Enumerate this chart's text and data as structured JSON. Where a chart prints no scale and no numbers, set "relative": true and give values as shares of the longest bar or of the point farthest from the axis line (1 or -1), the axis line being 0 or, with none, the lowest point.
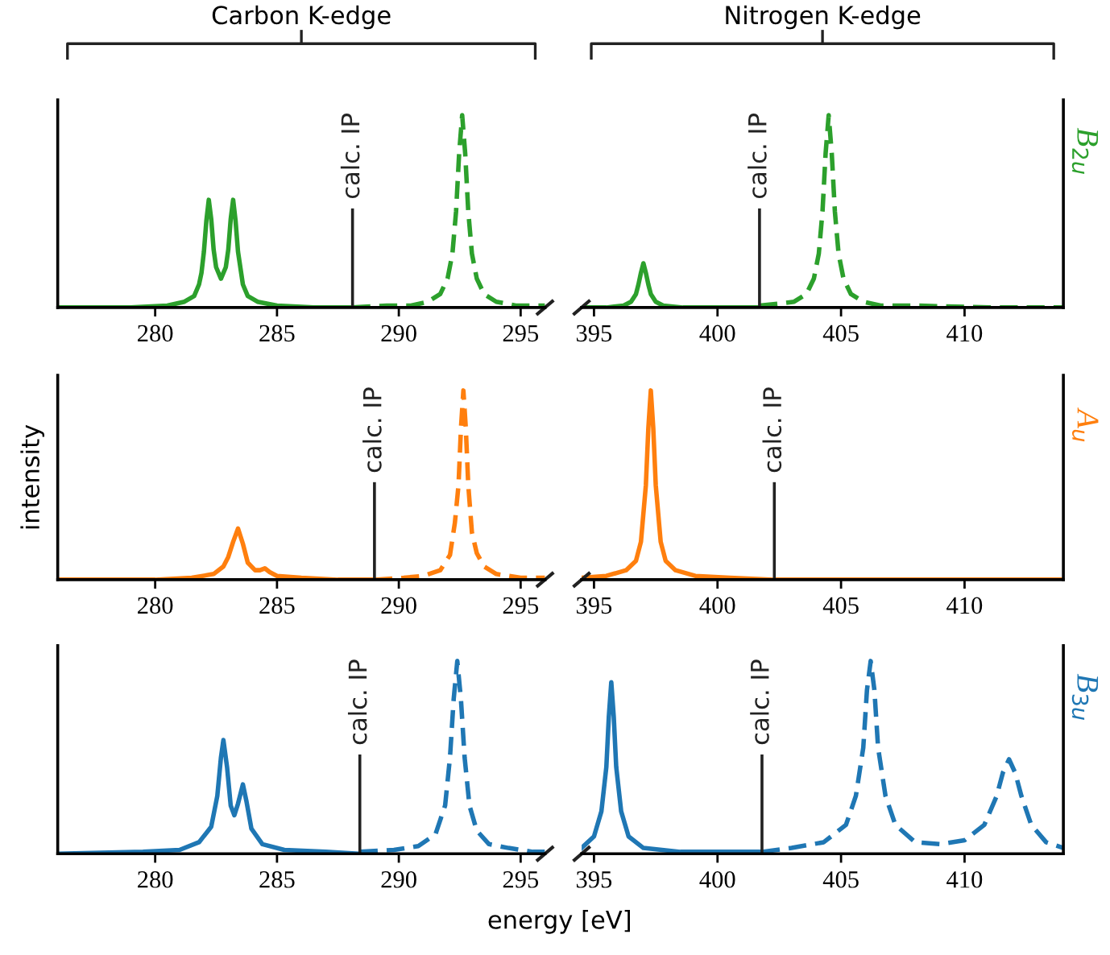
{
  "chart_data": [
    {
      "type": "line",
      "relative": true,
      "title": "Carbon K-edge",
      "xlim": [
        276,
        296
      ],
      "xticks": [
        280,
        285,
        290,
        295
      ],
      "series": [
        {
          "color": "#2ca02c",
          "line_style": "solid",
          "x": [
            276,
            279,
            280.5,
            281.2,
            281.6,
            281.8,
            281.9,
            282.0,
            282.1,
            282.2,
            282.3,
            282.4,
            282.5,
            282.7,
            282.9,
            283.0,
            283.1,
            283.2,
            283.3,
            283.4,
            283.6,
            283.8,
            284.2,
            285,
            286.5,
            288.1
          ],
          "values": [
            0,
            0,
            0.01,
            0.03,
            0.06,
            0.12,
            0.18,
            0.29,
            0.45,
            0.56,
            0.46,
            0.3,
            0.21,
            0.15,
            0.21,
            0.3,
            0.46,
            0.56,
            0.45,
            0.29,
            0.12,
            0.06,
            0.03,
            0.01,
            0,
            0
          ]
        },
        {
          "color": "#2ca02c",
          "line_style": "dashed",
          "x": [
            288.1,
            289.5,
            290.5,
            291.2,
            291.7,
            292.0,
            292.2,
            292.35,
            292.475,
            292.6,
            292.725,
            292.85,
            293.0,
            293.2,
            293.5,
            294.0,
            294.8,
            296
          ],
          "values": [
            0,
            0.01,
            0.01,
            0.03,
            0.07,
            0.15,
            0.28,
            0.5,
            0.8,
            1,
            0.8,
            0.5,
            0.28,
            0.15,
            0.07,
            0.03,
            0.01,
            0.01
          ]
        }
      ],
      "ref_lines": [
        {
          "axis": "x",
          "value": 288.1,
          "label": "calc. IP"
        }
      ]
    },
    {
      "type": "line",
      "relative": true,
      "title": "Nitrogen K-edge",
      "y2label": "B$_{2u}$",
      "xlim": [
        394.5,
        414
      ],
      "xticks": [
        395,
        400,
        405,
        410
      ],
      "series": [
        {
          "color": "#2ca02c",
          "line_style": "solid",
          "x": [
            394.5,
            395.5,
            396.2,
            396.5,
            396.7,
            396.8,
            396.9,
            397.0,
            397.1,
            397.2,
            397.3,
            397.5,
            397.8,
            398.6,
            400,
            401.7
          ],
          "values": [
            0,
            0,
            0.01,
            0.03,
            0.07,
            0.12,
            0.18,
            0.23,
            0.18,
            0.12,
            0.07,
            0.03,
            0.01,
            0,
            0,
            0
          ]
        },
        {
          "color": "#2ca02c",
          "line_style": "dashed",
          "x": [
            401.7,
            402.5,
            403.1,
            403.6,
            403.9,
            404.1,
            404.25,
            404.375,
            404.5,
            404.625,
            404.75,
            404.9,
            405.1,
            405.4,
            405.9,
            406.6,
            408,
            411,
            414
          ],
          "values": [
            0.01,
            0.02,
            0.03,
            0.07,
            0.15,
            0.28,
            0.5,
            0.8,
            1,
            0.8,
            0.5,
            0.28,
            0.15,
            0.07,
            0.03,
            0.01,
            0.01,
            0,
            0
          ]
        }
      ],
      "ref_lines": [
        {
          "axis": "x",
          "value": 401.7,
          "label": "calc. IP"
        }
      ]
    },
    {
      "type": "line",
      "relative": true,
      "ylabel": "intensity",
      "xlim": [
        276,
        296
      ],
      "xticks": [
        280,
        285,
        290,
        295
      ],
      "series": [
        {
          "color": "#ff7f0e",
          "line_style": "solid",
          "x": [
            276,
            280,
            281.5,
            282.4,
            282.8,
            283.0,
            283.2,
            283.4,
            283.6,
            283.8,
            284.1,
            284.3,
            284.5,
            284.7,
            285.0,
            286,
            287.5,
            289.0
          ],
          "values": [
            0,
            0,
            0.01,
            0.03,
            0.07,
            0.12,
            0.2,
            0.27,
            0.19,
            0.09,
            0.05,
            0.05,
            0.06,
            0.04,
            0.02,
            0.01,
            0,
            0
          ]
        },
        {
          "color": "#ff7f0e",
          "line_style": "dashed",
          "x": [
            289.0,
            290.2,
            291.0,
            291.7,
            292.1,
            292.3,
            292.45,
            292.55,
            292.65,
            292.75,
            292.85,
            293.0,
            293.2,
            293.5,
            294,
            295,
            296
          ],
          "values": [
            0,
            0.01,
            0.02,
            0.05,
            0.13,
            0.3,
            0.5,
            0.8,
            1,
            0.8,
            0.5,
            0.25,
            0.14,
            0.07,
            0.03,
            0.01,
            0.01
          ]
        }
      ],
      "ref_lines": [
        {
          "axis": "x",
          "value": 289.0,
          "label": "calc. IP"
        }
      ]
    },
    {
      "type": "line",
      "relative": true,
      "y2label": "A$_{u}$",
      "xlim": [
        394.5,
        414
      ],
      "xticks": [
        395,
        400,
        405,
        410
      ],
      "series": [
        {
          "color": "#ff7f0e",
          "line_style": "solid",
          "x": [
            394.5,
            395.5,
            396.3,
            396.7,
            396.9,
            397.1,
            397.2,
            397.3,
            397.4,
            397.5,
            397.7,
            397.9,
            398.3,
            399.1,
            400.5,
            402.3,
            414
          ],
          "values": [
            0.01,
            0.02,
            0.05,
            0.1,
            0.2,
            0.5,
            0.8,
            1,
            0.8,
            0.5,
            0.2,
            0.1,
            0.05,
            0.02,
            0.01,
            0,
            0
          ]
        }
      ],
      "ref_lines": [
        {
          "axis": "x",
          "value": 402.3,
          "label": "calc. IP"
        }
      ]
    },
    {
      "type": "line",
      "relative": true,
      "xlabel": "energy [eV]",
      "xlim": [
        276,
        296
      ],
      "xticks": [
        280,
        285,
        290,
        295
      ],
      "series": [
        {
          "color": "#1f77b4",
          "line_style": "solid",
          "x": [
            276,
            279.5,
            281,
            281.8,
            282.3,
            282.55,
            282.7,
            282.8,
            282.95,
            283.1,
            283.25,
            283.4,
            283.6,
            283.75,
            283.95,
            284.4,
            285.3,
            287,
            288.4
          ],
          "values": [
            0,
            0.01,
            0.02,
            0.06,
            0.14,
            0.3,
            0.5,
            0.59,
            0.45,
            0.25,
            0.2,
            0.26,
            0.36,
            0.27,
            0.13,
            0.05,
            0.02,
            0.01,
            0
          ]
        },
        {
          "color": "#1f77b4",
          "line_style": "dashed",
          "x": [
            288.4,
            289.8,
            290.8,
            291.5,
            291.9,
            292.1,
            292.25,
            292.4,
            292.55,
            292.7,
            292.9,
            293.2,
            293.7,
            294.5,
            295.5,
            296
          ],
          "values": [
            0.01,
            0.02,
            0.04,
            0.1,
            0.25,
            0.5,
            0.8,
            1,
            0.8,
            0.5,
            0.25,
            0.12,
            0.05,
            0.03,
            0.01,
            0.01
          ]
        }
      ],
      "ref_lines": [
        {
          "axis": "x",
          "value": 288.4,
          "label": "calc. IP"
        }
      ]
    },
    {
      "type": "line",
      "relative": true,
      "y2label": "B$_{3u}$",
      "xlim": [
        394.5,
        414
      ],
      "xticks": [
        395,
        400,
        405,
        410
      ],
      "series": [
        {
          "color": "#1f77b4",
          "line_style": "solid",
          "x": [
            394.5,
            395.0,
            395.3,
            395.5,
            395.6,
            395.7,
            395.8,
            395.9,
            396.1,
            396.4,
            397,
            398.5,
            400,
            401.8
          ],
          "values": [
            0.03,
            0.09,
            0.22,
            0.45,
            0.71,
            0.89,
            0.71,
            0.45,
            0.22,
            0.09,
            0.03,
            0.01,
            0.01,
            0.01
          ]
        },
        {
          "color": "#1f77b4",
          "line_style": "dashed",
          "x": [
            401.8,
            403,
            404.3,
            405.2,
            405.6,
            405.9,
            406.05,
            406.2,
            406.35,
            406.5,
            406.8,
            407.2,
            408,
            409,
            410,
            410.8,
            411.3,
            411.55,
            411.8,
            412.05,
            412.3,
            412.7,
            413.3,
            414
          ],
          "values": [
            0.01,
            0.03,
            0.06,
            0.15,
            0.3,
            0.55,
            0.85,
            1,
            0.85,
            0.55,
            0.3,
            0.15,
            0.06,
            0.05,
            0.07,
            0.15,
            0.3,
            0.42,
            0.49,
            0.42,
            0.3,
            0.15,
            0.06,
            0.03
          ]
        }
      ],
      "ref_lines": [
        {
          "axis": "x",
          "value": 401.8,
          "label": "calc. IP"
        }
      ]
    }
  ]
}
